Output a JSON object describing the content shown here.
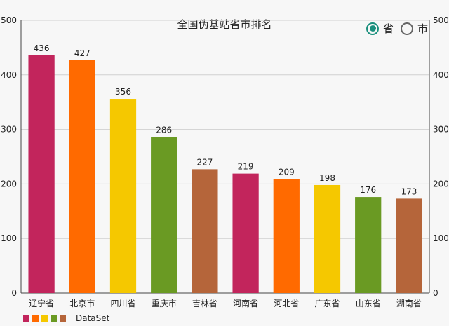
{
  "chart_data": {
    "type": "bar",
    "title": "全国伪基站省市排名",
    "categories": [
      "辽宁省",
      "北京市",
      "四川省",
      "重庆市",
      "吉林省",
      "河南省",
      "河北省",
      "广东省",
      "山东省",
      "湖南省"
    ],
    "values": [
      436,
      427,
      356,
      286,
      227,
      219,
      209,
      198,
      176,
      173
    ],
    "colors": [
      "#c2255c",
      "#ff6a00",
      "#f5c800",
      "#6a9a23",
      "#b5653a",
      "#c2255c",
      "#ff6a00",
      "#f5c800",
      "#6a9a23",
      "#b5653a"
    ],
    "ylim": [
      0,
      500
    ],
    "yticks": [
      0,
      100,
      200,
      300,
      400,
      500
    ],
    "grid": true,
    "legend": {
      "position": "bottom-left",
      "label": "DataSet"
    }
  },
  "toggle": {
    "options": [
      {
        "label": "省",
        "checked": true
      },
      {
        "label": "市",
        "checked": false
      }
    ],
    "accent": "#1a8f7d"
  }
}
